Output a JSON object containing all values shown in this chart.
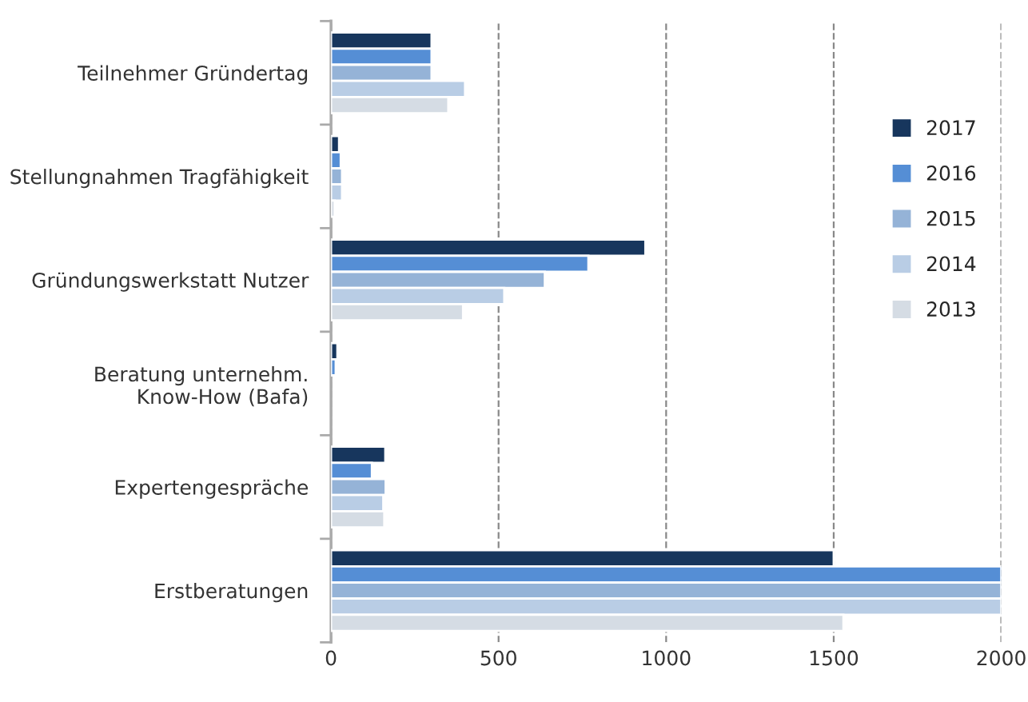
{
  "chart_data": {
    "type": "bar",
    "orientation": "horizontal",
    "categories": [
      "Teilnehmer Gründertag",
      "Stellungnahmen Tragfähigkeit",
      "Gründungswerkstatt Nutzer",
      "Beratung unternehm.\nKnow-How (Bafa)",
      "Expertengespräche",
      "Erstberatungen"
    ],
    "series": [
      {
        "name": "2017",
        "color": "#17365d",
        "values": [
          300,
          24,
          938,
          19,
          162,
          1500
        ]
      },
      {
        "name": "2016",
        "color": "#558ed5",
        "values": [
          300,
          29,
          768,
          14,
          122,
          2000
        ]
      },
      {
        "name": "2015",
        "color": "#95b3d7",
        "values": [
          300,
          33,
          638,
          null,
          163,
          2000
        ]
      },
      {
        "name": "2014",
        "color": "#b9cde5",
        "values": [
          400,
          33,
          517,
          null,
          156,
          2000
        ]
      },
      {
        "name": "2013",
        "color": "#d5dce4",
        "values": [
          350,
          11,
          394,
          null,
          159,
          1529
        ]
      }
    ],
    "xlim": [
      0,
      2000
    ],
    "xticks": [
      0,
      500,
      1000,
      1500,
      2000
    ],
    "grid": "x",
    "legend": "top right"
  }
}
